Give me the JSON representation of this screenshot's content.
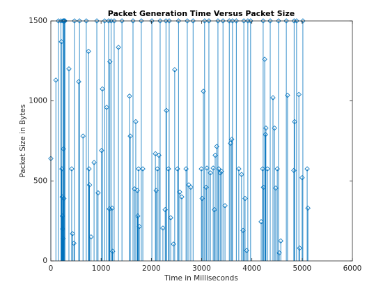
{
  "chart_data": {
    "type": "stem",
    "title": "Packet Generation Time Versus Packet Size",
    "x_label": "Time in Milliseconds",
    "y_label": "Packet Size in Bytes",
    "color": "#0072bd",
    "marker": "diamond",
    "xlim": [
      0,
      6000
    ],
    "xticks": [
      0,
      1000,
      2000,
      3000,
      4000,
      5000,
      6000
    ],
    "ylim": [
      0,
      1500
    ],
    "yticks": [
      0,
      500,
      1000,
      1500
    ],
    "x": [
      0,
      100,
      150,
      200,
      210,
      220,
      225,
      230,
      235,
      240,
      245,
      250,
      255,
      260,
      270,
      280,
      360,
      415,
      430,
      460,
      470,
      555,
      570,
      640,
      705,
      750,
      760,
      770,
      800,
      860,
      915,
      940,
      1010,
      1025,
      1070,
      1110,
      1150,
      1165,
      1175,
      1200,
      1220,
      1230,
      1260,
      1345,
      1415,
      1565,
      1580,
      1635,
      1665,
      1690,
      1720,
      1730,
      1745,
      1760,
      1800,
      1830,
      2010,
      2080,
      2095,
      2120,
      2150,
      2175,
      2230,
      2275,
      2290,
      2300,
      2340,
      2355,
      2385,
      2440,
      2465,
      2520,
      2540,
      2565,
      2605,
      2690,
      2715,
      2745,
      2785,
      2830,
      2995,
      3010,
      3035,
      3060,
      3090,
      3105,
      3145,
      3175,
      3230,
      3255,
      3270,
      3300,
      3325,
      3340,
      3370,
      3395,
      3425,
      3465,
      3550,
      3575,
      3600,
      3615,
      3690,
      3740,
      3795,
      3825,
      3840,
      3865,
      3895,
      3920,
      3975,
      4185,
      4215,
      4225,
      4230,
      4255,
      4270,
      4280,
      4310,
      4365,
      4420,
      4450,
      4475,
      4505,
      4530,
      4545,
      4575,
      4685,
      4710,
      4835,
      4840,
      4850,
      4890,
      4935,
      4950,
      5000,
      5015,
      5100,
      5115
    ],
    "values": [
      640,
      1130,
      1500,
      1500,
      1370,
      575,
      400,
      280,
      200,
      1500,
      140,
      700,
      1500,
      390,
      1500,
      1500,
      1200,
      575,
      170,
      110,
      1500,
      1120,
      1500,
      780,
      1500,
      1310,
      575,
      475,
      150,
      615,
      1500,
      425,
      690,
      1075,
      1500,
      960,
      1500,
      325,
      1245,
      1500,
      330,
      60,
      1500,
      1335,
      1500,
      1030,
      780,
      1500,
      450,
      870,
      440,
      280,
      575,
      215,
      1500,
      575,
      1500,
      670,
      440,
      575,
      660,
      1500,
      205,
      320,
      1500,
      940,
      575,
      1500,
      270,
      105,
      1195,
      575,
      1500,
      430,
      400,
      575,
      1500,
      475,
      460,
      1500,
      575,
      390,
      1060,
      1500,
      460,
      580,
      1500,
      550,
      580,
      320,
      660,
      715,
      1500,
      575,
      550,
      560,
      1500,
      345,
      1500,
      735,
      760,
      1500,
      1500,
      575,
      540,
      190,
      1500,
      390,
      65,
      1500,
      1500,
      245,
      575,
      1500,
      460,
      1260,
      790,
      830,
      575,
      1500,
      1020,
      830,
      455,
      575,
      1500,
      50,
      125,
      1500,
      1035,
      565,
      1500,
      870,
      1500,
      1040,
      80,
      520,
      1500,
      575,
      330
    ]
  }
}
